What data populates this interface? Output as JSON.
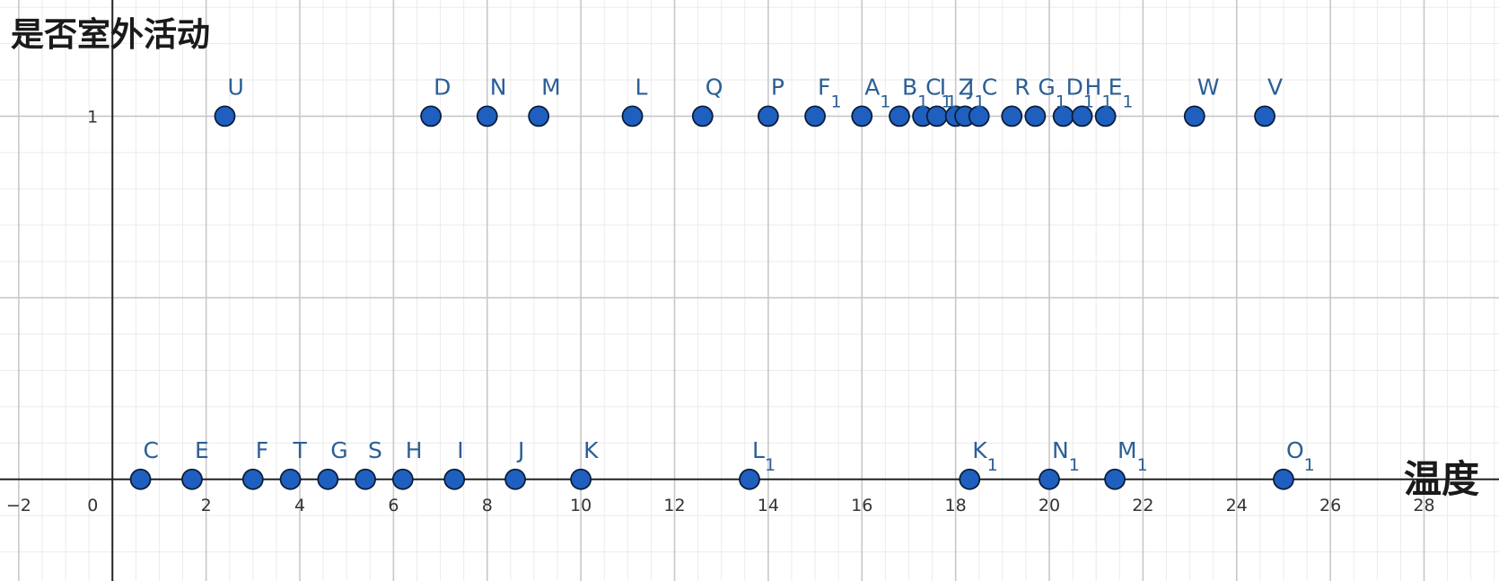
{
  "chart_data": {
    "type": "scatter",
    "xlabel": "温度",
    "ylabel": "是否室外活动",
    "xlim": [
      -2.4,
      29.6
    ],
    "ylim": [
      -0.28,
      1.32
    ],
    "x_ticks": [
      -2,
      0,
      2,
      4,
      6,
      8,
      10,
      12,
      14,
      16,
      18,
      20,
      22,
      24,
      26,
      28
    ],
    "y_ticks": [
      1
    ],
    "grid": true,
    "point_color": "#1f5fbf",
    "label_color": "#2b5f96",
    "points": [
      {
        "name": "U",
        "sub": "",
        "x": 2.4,
        "y": 1
      },
      {
        "name": "D",
        "sub": "",
        "x": 6.8,
        "y": 1
      },
      {
        "name": "N",
        "sub": "",
        "x": 8.0,
        "y": 1
      },
      {
        "name": "M",
        "sub": "",
        "x": 9.1,
        "y": 1
      },
      {
        "name": "L",
        "sub": "",
        "x": 11.1,
        "y": 1
      },
      {
        "name": "Q",
        "sub": "",
        "x": 12.6,
        "y": 1
      },
      {
        "name": "P",
        "sub": "",
        "x": 14.0,
        "y": 1
      },
      {
        "name": "F",
        "sub": "1",
        "x": 15.0,
        "y": 1
      },
      {
        "name": "A",
        "sub": "1",
        "x": 16.0,
        "y": 1
      },
      {
        "name": "B",
        "sub": "1",
        "x": 16.8,
        "y": 1
      },
      {
        "name": "C",
        "sub": "1",
        "x": 17.3,
        "y": 1
      },
      {
        "name": "I",
        "sub": "1",
        "x": 17.6,
        "y": 1
      },
      {
        "name": "Z",
        "sub": "",
        "x": 18.0,
        "y": 1
      },
      {
        "name": "J",
        "sub": "1",
        "x": 18.2,
        "y": 1
      },
      {
        "name": "C",
        "sub": "",
        "x": 18.5,
        "y": 1
      },
      {
        "name": "R",
        "sub": "",
        "x": 19.2,
        "y": 1
      },
      {
        "name": "G",
        "sub": "1",
        "x": 19.7,
        "y": 1
      },
      {
        "name": "D",
        "sub": "1",
        "x": 20.3,
        "y": 1
      },
      {
        "name": "H",
        "sub": "1",
        "x": 20.7,
        "y": 1
      },
      {
        "name": "E",
        "sub": "1",
        "x": 21.2,
        "y": 1
      },
      {
        "name": "W",
        "sub": "",
        "x": 23.1,
        "y": 1
      },
      {
        "name": "V",
        "sub": "",
        "x": 24.6,
        "y": 1
      },
      {
        "name": "C",
        "sub": "",
        "x": 0.6,
        "y": 0
      },
      {
        "name": "E",
        "sub": "",
        "x": 1.7,
        "y": 0
      },
      {
        "name": "F",
        "sub": "",
        "x": 3.0,
        "y": 0
      },
      {
        "name": "T",
        "sub": "",
        "x": 3.8,
        "y": 0
      },
      {
        "name": "G",
        "sub": "",
        "x": 4.6,
        "y": 0
      },
      {
        "name": "S",
        "sub": "",
        "x": 5.4,
        "y": 0
      },
      {
        "name": "H",
        "sub": "",
        "x": 6.2,
        "y": 0
      },
      {
        "name": "I",
        "sub": "",
        "x": 7.3,
        "y": 0
      },
      {
        "name": "J",
        "sub": "",
        "x": 8.6,
        "y": 0
      },
      {
        "name": "K",
        "sub": "",
        "x": 10.0,
        "y": 0
      },
      {
        "name": "L",
        "sub": "1",
        "x": 13.6,
        "y": 0
      },
      {
        "name": "K",
        "sub": "1",
        "x": 18.3,
        "y": 0
      },
      {
        "name": "N",
        "sub": "1",
        "x": 20.0,
        "y": 0
      },
      {
        "name": "M",
        "sub": "1",
        "x": 21.4,
        "y": 0
      },
      {
        "name": "O",
        "sub": "1",
        "x": 25.0,
        "y": 0
      }
    ]
  }
}
